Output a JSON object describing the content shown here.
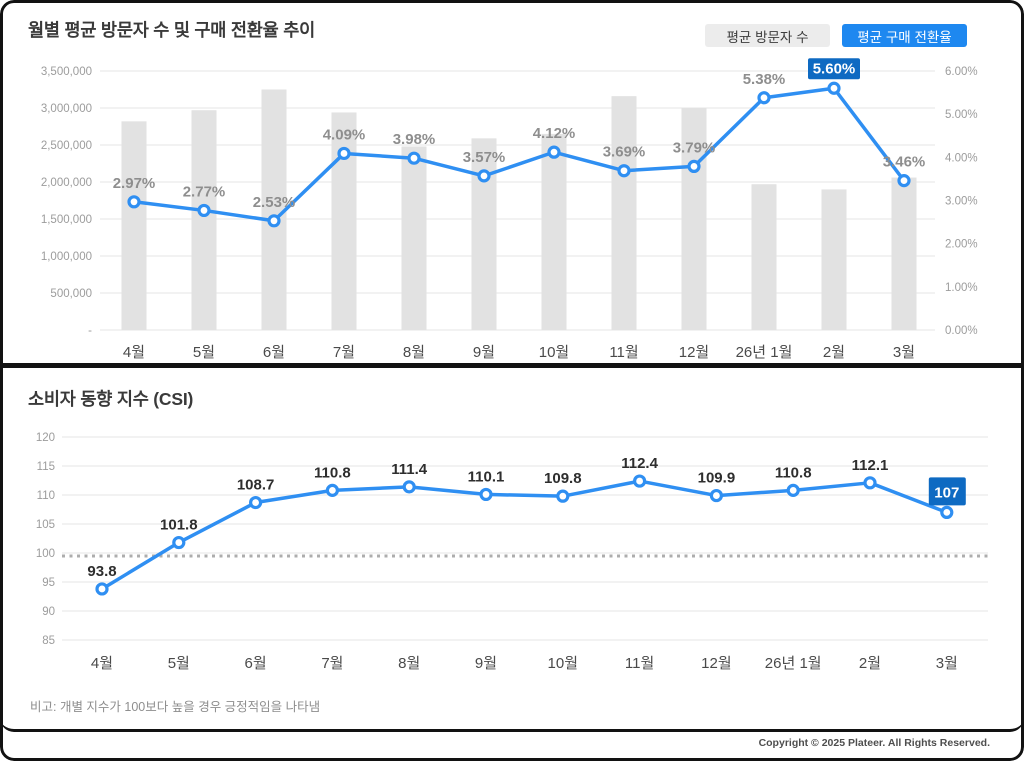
{
  "colors": {
    "legend_gray_bg": "#ececec",
    "accent_blue": "#1e88f0",
    "line_blue": "#2f8ff2",
    "label_box_blue": "#0e6ac2",
    "bar_gray": "#e2e2e2",
    "gridline": "#eaeaea",
    "axis_text": "#9c9c9c",
    "month_text": "#4a4a4a",
    "gray_label": "#8e8e8e",
    "dark_label": "#2e2e2e",
    "baseline_dot": "#adadad"
  },
  "chart_data": [
    {
      "type": "combo-bar-line",
      "title": "월별 평균 방문자 수 및 구매 전환율 추이",
      "categories": [
        "4월",
        "5월",
        "6월",
        "7월",
        "8월",
        "9월",
        "10월",
        "11월",
        "12월",
        "26년 1월",
        "2월",
        "3월"
      ],
      "series": [
        {
          "name": "평균 방문자 수",
          "type": "bar",
          "axis": "left",
          "values": [
            2820000,
            2970000,
            3250000,
            2940000,
            2480000,
            2590000,
            2650000,
            3160000,
            3000000,
            1970000,
            1900000,
            2060000
          ]
        },
        {
          "name": "평균 구매 전환율",
          "type": "line",
          "axis": "right",
          "values": [
            2.97,
            2.77,
            2.53,
            4.09,
            3.98,
            3.57,
            4.12,
            3.69,
            3.79,
            5.38,
            5.6,
            3.46
          ],
          "labels": [
            "2.97%",
            "2.77%",
            "2.53%",
            "4.09%",
            "3.98%",
            "3.57%",
            "4.12%",
            "3.69%",
            "3.79%",
            "5.38%",
            "5.60%",
            "3.46%"
          ],
          "highlight_index": 10
        }
      ],
      "left_axis": {
        "min": 0,
        "max": 3500000,
        "ticks": [
          "3,500,000",
          "3,000,000",
          "2,500,000",
          "2,000,000",
          "1,500,000",
          "1,000,000",
          "500,000",
          "-"
        ]
      },
      "right_axis": {
        "min": 0,
        "max": 6,
        "ticks": [
          "6.00%",
          "5.00%",
          "4.00%",
          "3.00%",
          "2.00%",
          "1.00%",
          "0.00%"
        ]
      },
      "grid": true,
      "legend_position": "top-right"
    },
    {
      "type": "line",
      "title": "소비자 동향 지수 (CSI)",
      "categories": [
        "4월",
        "5월",
        "6월",
        "7월",
        "8월",
        "9월",
        "10월",
        "11월",
        "12월",
        "26년 1월",
        "2월",
        "3월"
      ],
      "values": [
        93.8,
        101.8,
        108.7,
        110.8,
        111.4,
        110.1,
        109.8,
        112.4,
        109.9,
        110.8,
        112.1,
        107
      ],
      "labels": [
        "93.8",
        "101.8",
        "108.7",
        "110.8",
        "111.4",
        "110.1",
        "109.8",
        "112.4",
        "109.9",
        "110.8",
        "112.1",
        "107"
      ],
      "highlight_index": 11,
      "y_axis": {
        "min": 85,
        "max": 120,
        "ticks": [
          "120",
          "115",
          "110",
          "105",
          "100",
          "95",
          "90",
          "85"
        ]
      },
      "baseline": {
        "value": 100,
        "style": "dotted"
      },
      "note": "비고: 개별 지수가 100보다 높을 경우 긍정적임을 나타냄",
      "grid": true
    }
  ],
  "footer": {
    "copyright": "Copyright © 2025 Plateer. All Rights Reserved."
  }
}
